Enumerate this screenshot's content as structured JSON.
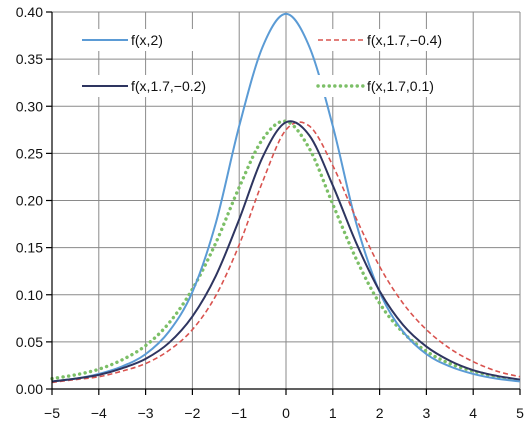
{
  "chart_data": {
    "type": "line",
    "xlim": [
      -5,
      5
    ],
    "ylim": [
      0,
      0.4
    ],
    "grid": true,
    "x_ticks": [
      -5,
      -4,
      -3,
      -2,
      -1,
      0,
      1,
      2,
      3,
      4,
      5
    ],
    "x_tick_labels": [
      "−5",
      "−4",
      "−3",
      "−2",
      "−1",
      "0",
      "1",
      "2",
      "3",
      "4",
      "5"
    ],
    "y_ticks": [
      0,
      0.05,
      0.1,
      0.15,
      0.2,
      0.25,
      0.3,
      0.35,
      0.4
    ],
    "y_tick_labels": [
      "0.00",
      "0.05",
      "0.10",
      "0.15",
      "0.20",
      "0.25",
      "0.30",
      "0.35",
      "0.40"
    ],
    "legend_placement": "top, two columns",
    "x": [
      -5,
      -4.5,
      -4,
      -3.5,
      -3,
      -2.5,
      -2,
      -1.5,
      -1,
      -0.5,
      0,
      0.5,
      1,
      1.5,
      2,
      2.5,
      3,
      3.5,
      4,
      4.5,
      5
    ],
    "series": [
      {
        "name": "f(x,2)",
        "color": "#5b9bd5",
        "style": "solid",
        "values": [
          0.008,
          0.011,
          0.016,
          0.024,
          0.037,
          0.061,
          0.103,
          0.176,
          0.279,
          0.363,
          0.398,
          0.363,
          0.279,
          0.176,
          0.103,
          0.061,
          0.037,
          0.024,
          0.016,
          0.011,
          0.008
        ]
      },
      {
        "name": "f(x,1.7,−0.4)",
        "color": "#d9534f",
        "style": "dashed",
        "values": [
          0.007,
          0.01,
          0.013,
          0.019,
          0.027,
          0.041,
          0.063,
          0.099,
          0.153,
          0.22,
          0.275,
          0.279,
          0.237,
          0.181,
          0.13,
          0.091,
          0.063,
          0.043,
          0.029,
          0.019,
          0.013
        ]
      },
      {
        "name": "f(x,1.7,−0.2)",
        "color": "#2e3560",
        "style": "solid",
        "values": [
          0.008,
          0.011,
          0.015,
          0.022,
          0.032,
          0.049,
          0.077,
          0.12,
          0.18,
          0.246,
          0.283,
          0.269,
          0.216,
          0.155,
          0.104,
          0.068,
          0.045,
          0.03,
          0.02,
          0.014,
          0.01
        ]
      },
      {
        "name": "f(x,1.7,0.1)",
        "color": "#7cbf67",
        "style": "dotted",
        "values": [
          0.011,
          0.015,
          0.021,
          0.031,
          0.046,
          0.07,
          0.106,
          0.155,
          0.214,
          0.265,
          0.284,
          0.255,
          0.196,
          0.138,
          0.091,
          0.06,
          0.04,
          0.027,
          0.019,
          0.013,
          0.009
        ]
      }
    ]
  }
}
